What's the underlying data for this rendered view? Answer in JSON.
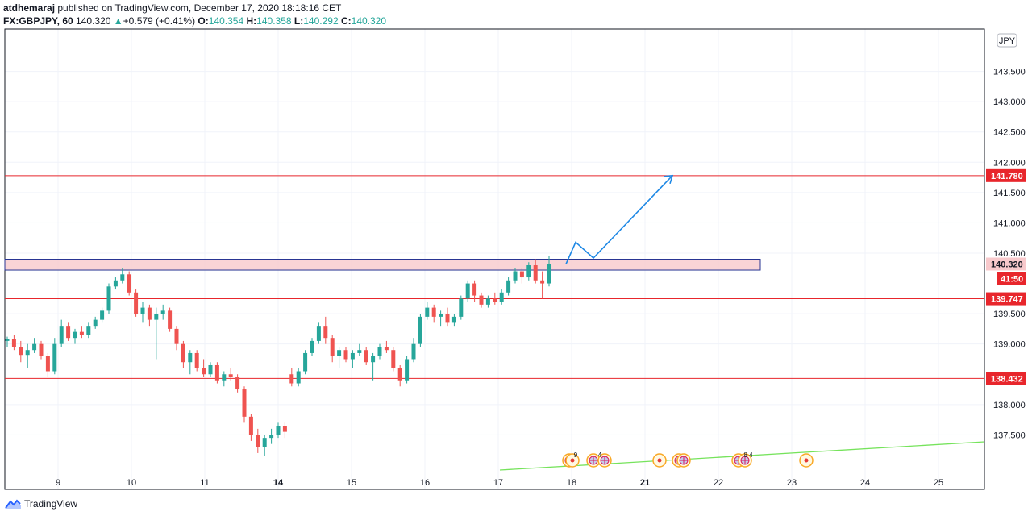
{
  "header": {
    "author": "atdhemaraj",
    "published": "published on TradingView.com, December 17, 2020 18:18:16 CET",
    "symbol": "FX:GBPJPY, 60",
    "price": "140.320",
    "change": "+0.579 (+0.41%)",
    "o_label": "O:",
    "o": "140.354",
    "h_label": "H:",
    "h": "140.358",
    "l_label": "L:",
    "l": "140.292",
    "c_label": "C:",
    "c": "140.320"
  },
  "currency_badge": "JPY",
  "price_tags": {
    "resistance_top": "141.780",
    "current": "140.320",
    "countdown": "41:50",
    "support_mid": "139.747",
    "support_low": "138.432"
  },
  "footer": {
    "brand": "TradingView",
    "logo_icon": "tradingview-logo-icon"
  },
  "events": {
    "count_a": "9",
    "count_b": "4",
    "count_c": "8 4"
  },
  "colors": {
    "up": "#26a69a",
    "down": "#ef5350",
    "level": "#e8262c",
    "arrow": "#1e88e5",
    "trend": "#76e35c"
  },
  "chart_data": {
    "type": "candlestick",
    "x_ticks": [
      "9",
      "10",
      "11",
      "14",
      "15",
      "16",
      "17",
      "18",
      "21",
      "22",
      "23",
      "24",
      "25"
    ],
    "y_ticks": [
      "143.500",
      "143.000",
      "142.500",
      "142.000",
      "141.500",
      "141.000",
      "140.500",
      "139.500",
      "139.000",
      "138.000",
      "137.500"
    ],
    "ylim": [
      136.6,
      144.2
    ],
    "levels": [
      141.78,
      139.747,
      138.432
    ],
    "zone": [
      140.22,
      140.4
    ],
    "current_price": 140.32,
    "projection": [
      140.32,
      140.68,
      140.42,
      141.78
    ],
    "candles": [
      [
        139.05,
        139.12,
        138.95,
        139.08
      ],
      [
        139.08,
        139.15,
        138.9,
        138.95
      ],
      [
        138.95,
        139.05,
        138.7,
        138.82
      ],
      [
        138.82,
        139.0,
        138.6,
        138.9
      ],
      [
        138.9,
        139.1,
        138.85,
        139.0
      ],
      [
        139.0,
        139.05,
        138.75,
        138.8
      ],
      [
        138.8,
        138.85,
        138.45,
        138.55
      ],
      [
        138.55,
        139.1,
        138.5,
        139.0
      ],
      [
        139.0,
        139.4,
        138.95,
        139.3
      ],
      [
        139.3,
        139.35,
        139.05,
        139.1
      ],
      [
        139.1,
        139.25,
        139.0,
        139.2
      ],
      [
        139.2,
        139.3,
        139.1,
        139.15
      ],
      [
        139.15,
        139.35,
        139.1,
        139.3
      ],
      [
        139.3,
        139.45,
        139.25,
        139.4
      ],
      [
        139.4,
        139.6,
        139.35,
        139.55
      ],
      [
        139.55,
        140.0,
        139.5,
        139.95
      ],
      [
        139.95,
        140.1,
        139.9,
        140.05
      ],
      [
        140.05,
        140.25,
        140.0,
        140.15
      ],
      [
        140.15,
        140.2,
        139.8,
        139.85
      ],
      [
        139.85,
        139.9,
        139.45,
        139.5
      ],
      [
        139.5,
        139.7,
        139.35,
        139.6
      ],
      [
        139.6,
        139.65,
        139.3,
        139.4
      ],
      [
        139.4,
        139.6,
        138.75,
        139.5
      ],
      [
        139.5,
        139.65,
        139.4,
        139.55
      ],
      [
        139.55,
        139.6,
        139.2,
        139.25
      ],
      [
        139.25,
        139.3,
        138.9,
        139.0
      ],
      [
        139.0,
        139.05,
        138.6,
        138.7
      ],
      [
        138.7,
        138.9,
        138.5,
        138.85
      ],
      [
        138.85,
        138.9,
        138.55,
        138.6
      ],
      [
        138.6,
        138.75,
        138.45,
        138.5
      ],
      [
        138.5,
        138.7,
        138.45,
        138.65
      ],
      [
        138.65,
        138.7,
        138.35,
        138.4
      ],
      [
        138.4,
        138.55,
        138.3,
        138.5
      ],
      [
        138.5,
        138.6,
        138.4,
        138.45
      ],
      [
        138.45,
        138.5,
        138.2,
        138.25
      ],
      [
        138.25,
        138.3,
        137.7,
        137.8
      ],
      [
        137.8,
        137.85,
        137.4,
        137.5
      ],
      [
        137.5,
        137.6,
        137.2,
        137.3
      ],
      [
        137.3,
        137.5,
        137.15,
        137.45
      ],
      [
        137.45,
        137.6,
        137.35,
        137.5
      ],
      [
        137.5,
        137.7,
        137.45,
        137.65
      ],
      [
        137.65,
        137.7,
        137.45,
        137.55
      ],
      [
        138.5,
        138.6,
        138.3,
        138.35
      ],
      [
        138.35,
        138.6,
        138.3,
        138.55
      ],
      [
        138.55,
        138.9,
        138.5,
        138.85
      ],
      [
        138.85,
        139.1,
        138.8,
        139.05
      ],
      [
        139.05,
        139.35,
        139.0,
        139.3
      ],
      [
        139.3,
        139.45,
        139.0,
        139.1
      ],
      [
        139.1,
        139.15,
        138.7,
        138.8
      ],
      [
        138.8,
        138.95,
        138.6,
        138.9
      ],
      [
        138.9,
        138.95,
        138.7,
        138.75
      ],
      [
        138.75,
        138.9,
        138.6,
        138.85
      ],
      [
        138.85,
        139.0,
        138.8,
        138.9
      ],
      [
        138.9,
        138.95,
        138.65,
        138.7
      ],
      [
        138.7,
        138.85,
        138.4,
        138.8
      ],
      [
        138.8,
        139.0,
        138.75,
        138.95
      ],
      [
        138.95,
        139.05,
        138.85,
        138.9
      ],
      [
        138.9,
        138.95,
        138.55,
        138.6
      ],
      [
        138.6,
        138.65,
        138.3,
        138.4
      ],
      [
        138.4,
        138.8,
        138.35,
        138.75
      ],
      [
        138.75,
        139.1,
        138.7,
        139.0
      ],
      [
        139.0,
        139.5,
        138.95,
        139.45
      ],
      [
        139.45,
        139.7,
        139.4,
        139.6
      ],
      [
        139.6,
        139.65,
        139.35,
        139.45
      ],
      [
        139.45,
        139.55,
        139.3,
        139.5
      ],
      [
        139.5,
        139.6,
        139.3,
        139.35
      ],
      [
        139.35,
        139.5,
        139.3,
        139.45
      ],
      [
        139.45,
        139.8,
        139.4,
        139.75
      ],
      [
        139.75,
        140.05,
        139.7,
        140.0
      ],
      [
        140.0,
        140.05,
        139.7,
        139.8
      ],
      [
        139.8,
        139.85,
        139.6,
        139.65
      ],
      [
        139.65,
        139.8,
        139.6,
        139.75
      ],
      [
        139.75,
        139.85,
        139.65,
        139.7
      ],
      [
        139.7,
        139.9,
        139.65,
        139.85
      ],
      [
        139.85,
        140.1,
        139.8,
        140.05
      ],
      [
        140.05,
        140.25,
        140.0,
        140.2
      ],
      [
        140.2,
        140.25,
        140.0,
        140.1
      ],
      [
        140.1,
        140.35,
        140.05,
        140.3
      ],
      [
        140.3,
        140.4,
        140.0,
        140.05
      ],
      [
        140.05,
        140.2,
        139.75,
        140.0
      ],
      [
        140.0,
        140.45,
        139.95,
        140.32
      ]
    ]
  }
}
